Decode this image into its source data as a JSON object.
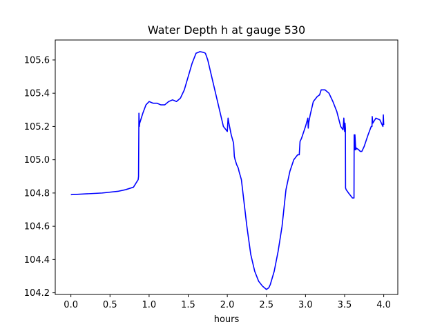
{
  "chart_data": {
    "type": "line",
    "title": "Water Depth h at gauge 530",
    "xlabel": "hours",
    "ylabel": "",
    "xlim": [
      -0.2,
      4.18
    ],
    "ylim": [
      104.19,
      105.72
    ],
    "x_ticks": [
      0.0,
      0.5,
      1.0,
      1.5,
      2.0,
      2.5,
      3.0,
      3.5,
      4.0
    ],
    "x_tick_labels": [
      "0.0",
      "0.5",
      "1.0",
      "1.5",
      "2.0",
      "2.5",
      "3.0",
      "3.5",
      "4.0"
    ],
    "y_ticks": [
      104.2,
      104.4,
      104.6,
      104.8,
      105.0,
      105.2,
      105.4,
      105.6
    ],
    "y_tick_labels": [
      "104.2",
      "104.4",
      "104.6",
      "104.8",
      "105.0",
      "105.2",
      "105.4",
      "105.6"
    ],
    "grid": false,
    "series": [
      {
        "color": "#0000ff",
        "x": [
          0.0,
          0.2,
          0.4,
          0.6,
          0.7,
          0.8,
          0.86,
          0.865,
          0.87,
          0.875,
          0.88,
          0.92,
          0.96,
          1.0,
          1.05,
          1.1,
          1.15,
          1.2,
          1.25,
          1.3,
          1.35,
          1.4,
          1.45,
          1.5,
          1.55,
          1.6,
          1.65,
          1.7,
          1.72,
          1.75,
          1.8,
          1.85,
          1.9,
          1.95,
          2.0,
          2.01,
          2.02,
          2.05,
          2.08,
          2.09,
          2.1,
          2.12,
          2.14,
          2.15,
          2.18,
          2.2,
          2.25,
          2.3,
          2.35,
          2.4,
          2.45,
          2.5,
          2.53,
          2.55,
          2.6,
          2.65,
          2.7,
          2.75,
          2.8,
          2.85,
          2.9,
          2.92,
          2.93,
          2.95,
          3.0,
          3.03,
          3.035,
          3.04,
          3.06,
          3.1,
          3.15,
          3.18,
          3.2,
          3.25,
          3.3,
          3.35,
          3.4,
          3.45,
          3.48,
          3.49,
          3.5,
          3.505,
          3.51,
          3.512,
          3.52,
          3.55,
          3.6,
          3.62,
          3.622,
          3.63,
          3.632,
          3.64,
          3.642,
          3.65,
          3.68,
          3.7,
          3.72,
          3.75,
          3.8,
          3.84,
          3.85,
          3.853,
          3.86,
          3.9,
          3.95,
          3.99,
          3.995,
          4.0
        ],
        "y": [
          104.79,
          104.795,
          104.8,
          104.81,
          104.82,
          104.835,
          104.88,
          104.9,
          105.28,
          105.2,
          105.22,
          105.28,
          105.33,
          105.35,
          105.34,
          105.34,
          105.33,
          105.33,
          105.35,
          105.36,
          105.35,
          105.37,
          105.42,
          105.5,
          105.58,
          105.64,
          105.65,
          105.645,
          105.64,
          105.6,
          105.5,
          105.4,
          105.3,
          105.2,
          105.17,
          105.25,
          105.22,
          105.15,
          105.1,
          105.02,
          105.0,
          104.97,
          104.95,
          104.93,
          104.88,
          104.8,
          104.6,
          104.43,
          104.33,
          104.27,
          104.24,
          104.22,
          104.23,
          104.25,
          104.33,
          104.45,
          104.6,
          104.82,
          104.93,
          105.0,
          105.03,
          105.03,
          105.11,
          105.13,
          105.2,
          105.25,
          105.19,
          105.22,
          105.27,
          105.35,
          105.38,
          105.39,
          105.42,
          105.42,
          105.4,
          105.35,
          105.29,
          105.2,
          105.18,
          105.25,
          105.17,
          105.22,
          105.19,
          104.83,
          104.82,
          104.8,
          104.77,
          104.77,
          105.15,
          105.06,
          105.15,
          105.08,
          105.06,
          105.07,
          105.06,
          105.05,
          105.05,
          105.08,
          105.15,
          105.2,
          105.2,
          105.26,
          105.22,
          105.25,
          105.24,
          105.2,
          105.27,
          105.21
        ]
      }
    ]
  }
}
